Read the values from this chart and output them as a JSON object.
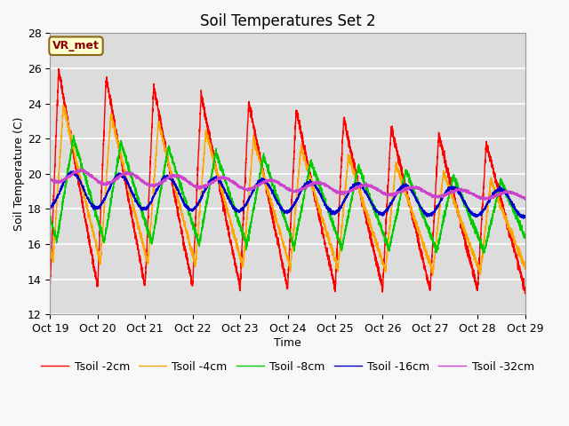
{
  "title": "Soil Temperatures Set 2",
  "xlabel": "Time",
  "ylabel": "Soil Temperature (C)",
  "ylim": [
    12,
    28
  ],
  "xlim_days": [
    0,
    10
  ],
  "xtick_positions": [
    0,
    1,
    2,
    3,
    4,
    5,
    6,
    7,
    8,
    9,
    10
  ],
  "xtick_labels": [
    "Oct 19",
    "Oct 20",
    "Oct 21",
    "Oct 22",
    "Oct 23",
    "Oct 24",
    "Oct 25",
    "Oct 26",
    "Oct 27",
    "Oct 28",
    "Oct 29"
  ],
  "ytick_positions": [
    12,
    14,
    16,
    18,
    20,
    22,
    24,
    26,
    28
  ],
  "legend_entries": [
    "Tsoil -2cm",
    "Tsoil -4cm",
    "Tsoil -8cm",
    "Tsoil -16cm",
    "Tsoil -32cm"
  ],
  "line_colors": [
    "#ff0000",
    "#ffa500",
    "#00cc00",
    "#0000cc",
    "#cc44cc"
  ],
  "annotation_text": "VR_met",
  "bg_color": "#dcdcdc",
  "fig_bg_color": "#f8f8f8",
  "grid_color": "#ffffff",
  "title_fontsize": 12,
  "axis_fontsize": 9,
  "legend_fontsize": 9
}
